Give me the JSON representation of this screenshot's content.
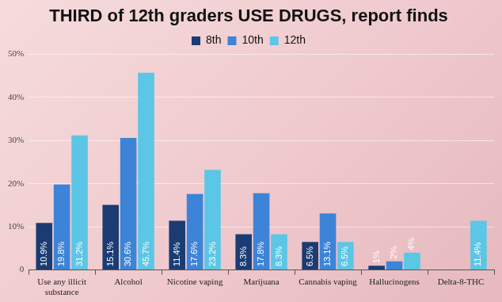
{
  "chart_data": {
    "type": "bar",
    "title": "THIRD of 12th graders USE DRUGS, report finds",
    "categories": [
      "Use any illicit substance",
      "Alcohol",
      "Nicotine vaping",
      "Marijuana",
      "Cannabis vaping",
      "Hallucinogens",
      "Delta-8-THC"
    ],
    "series": [
      {
        "name": "8th",
        "color": "#1b3c73",
        "values": [
          10.9,
          15.1,
          11.4,
          8.3,
          6.5,
          1,
          null
        ],
        "value_labels": [
          "10.9%",
          "15.1%",
          "11.4%",
          "8.3%",
          "6.5%",
          "1%",
          null
        ]
      },
      {
        "name": "10th",
        "color": "#3d84d8",
        "values": [
          19.8,
          30.6,
          17.6,
          17.8,
          13.1,
          2,
          null
        ],
        "value_labels": [
          "19.8%",
          "30.6%",
          "17.6%",
          "17.8%",
          "13.1%",
          "2%",
          null
        ]
      },
      {
        "name": "12th",
        "color": "#5cc6e6",
        "values": [
          31.2,
          45.7,
          23.2,
          8.3,
          6.5,
          4,
          11.4
        ],
        "value_labels": [
          "31.2%",
          "45.7%",
          "23.2%",
          "8.3%",
          "6.5%",
          "4%",
          "11.4%"
        ]
      }
    ],
    "ylim": [
      0,
      50
    ],
    "yticks": [
      0,
      {
        "value": 10,
        "label": "10%"
      },
      {
        "value": 20,
        "label": "20%"
      },
      {
        "value": 30,
        "label": "30%"
      },
      {
        "value": 40,
        "label": "40%"
      },
      {
        "value": 50,
        "label": "50%"
      }
    ],
    "grid": true,
    "legend": "top",
    "data_labels": true
  }
}
